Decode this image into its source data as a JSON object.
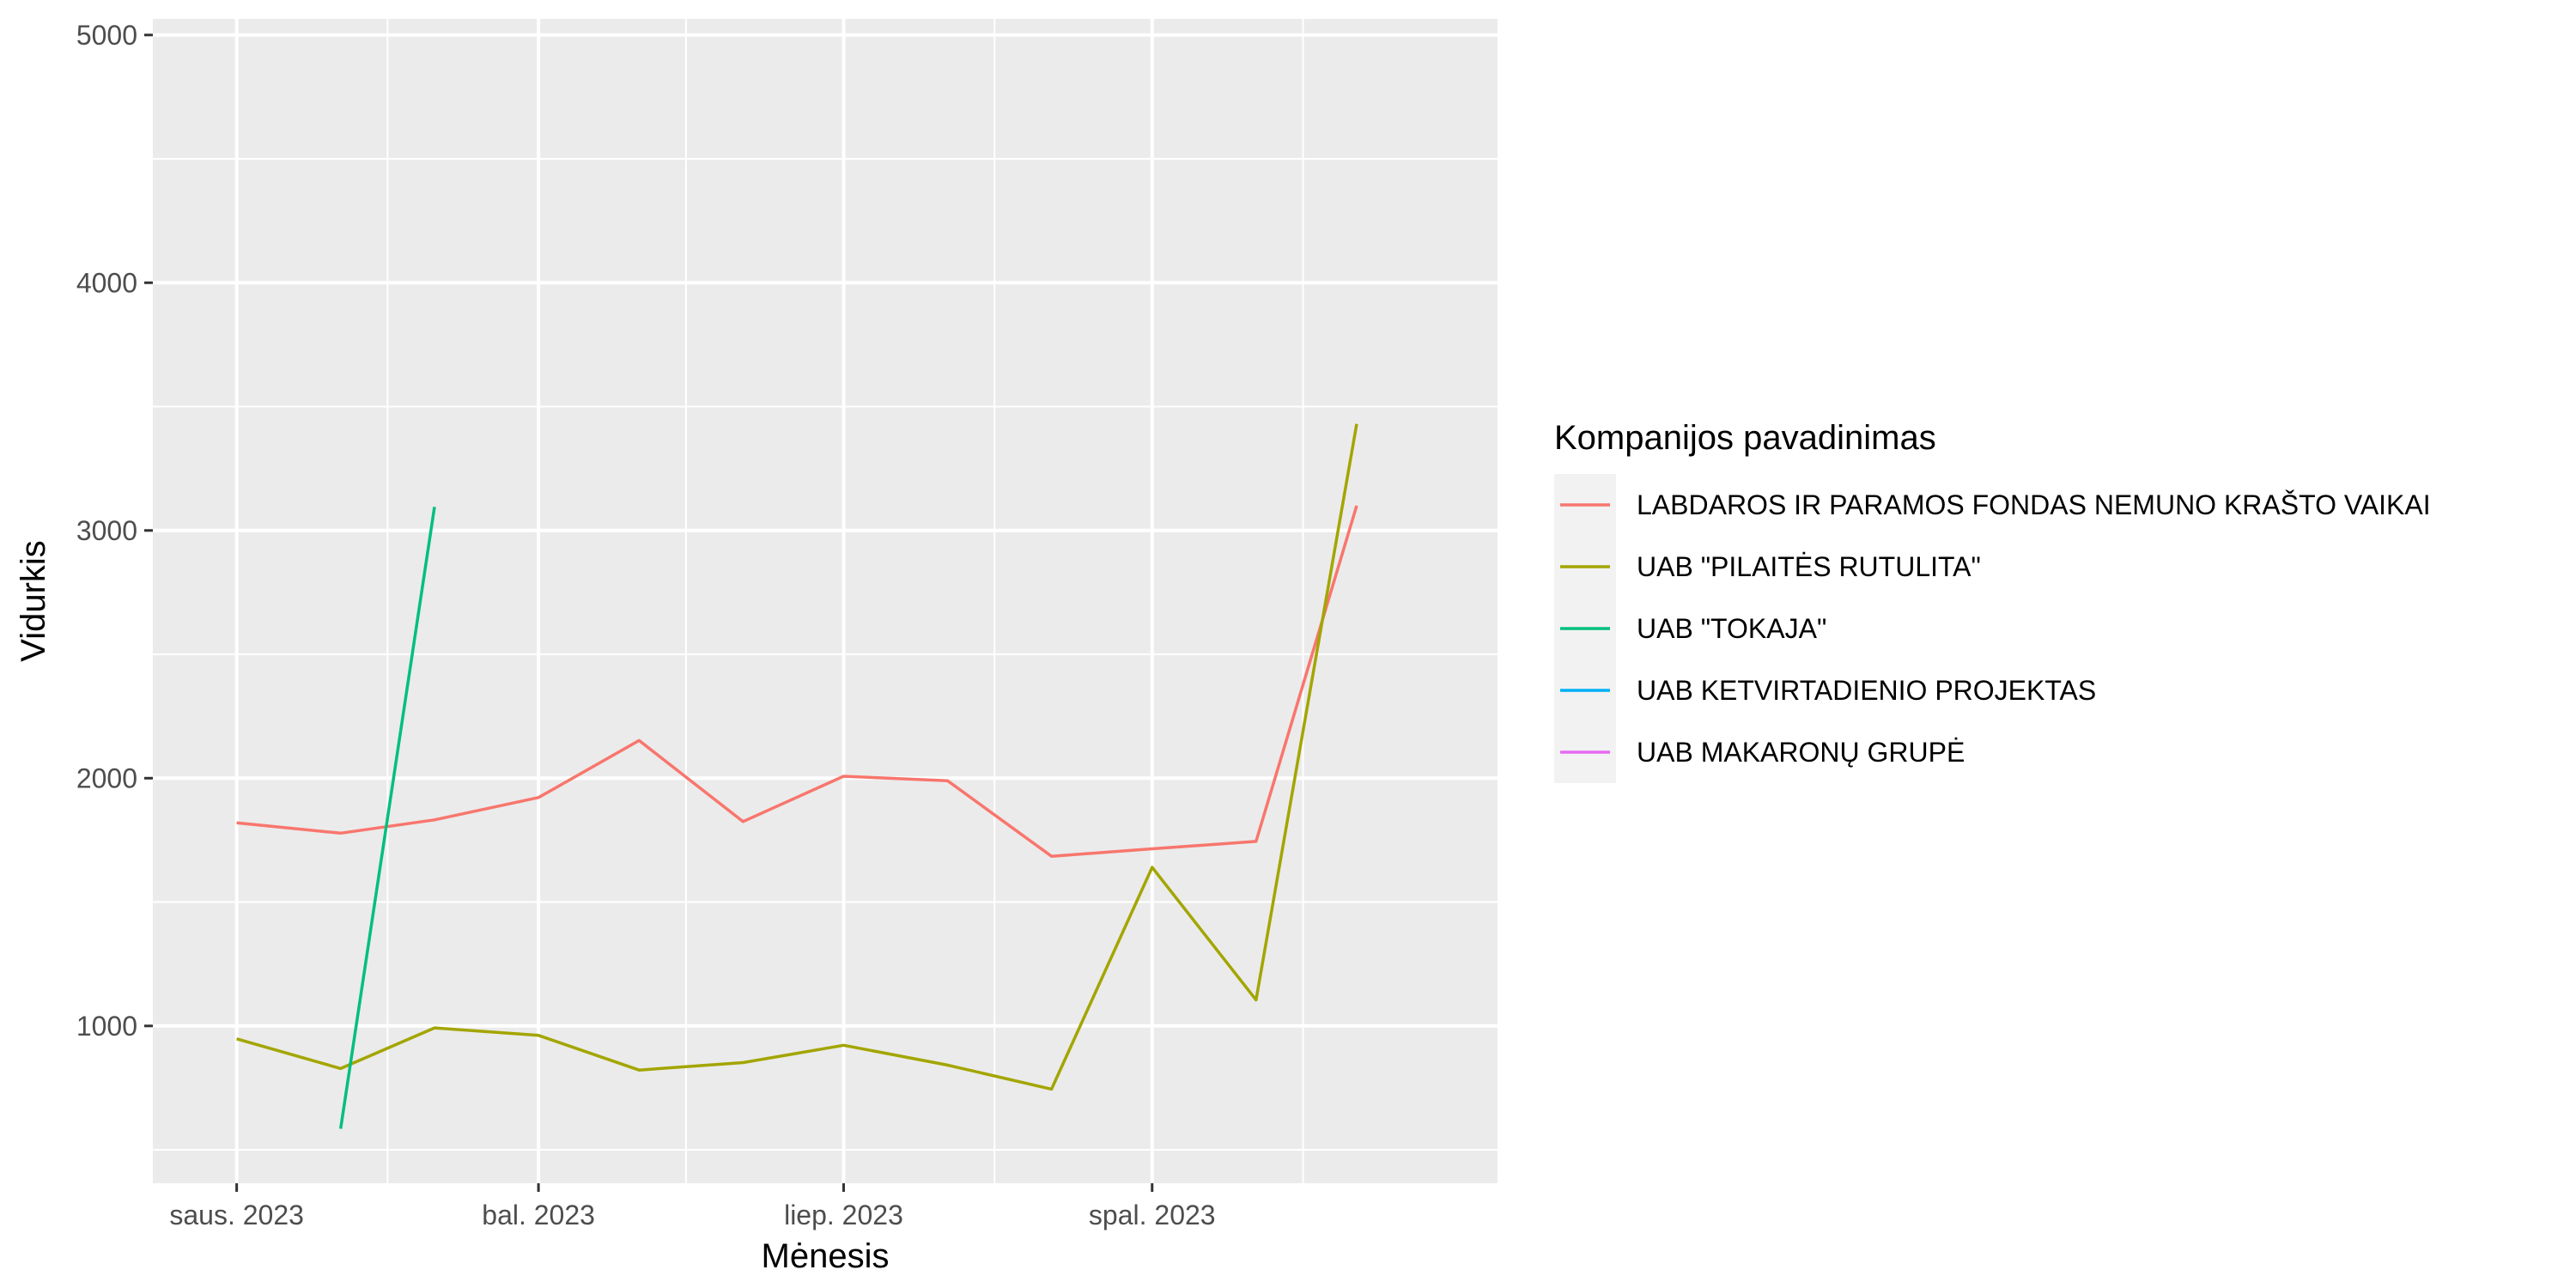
{
  "chart_data": {
    "type": "line",
    "xlabel": "Mėnesis",
    "ylabel": "Vidurkis",
    "x_ticks": [
      {
        "date": "2023-01-01",
        "label": "saus. 2023"
      },
      {
        "date": "2023-04-01",
        "label": "bal. 2023"
      },
      {
        "date": "2023-07-01",
        "label": "liep. 2023"
      },
      {
        "date": "2023-10-01",
        "label": "spal. 2023"
      }
    ],
    "x_minor_breaks": [
      "2023-02-15",
      "2023-05-15",
      "2023-08-15",
      "2023-11-15"
    ],
    "xlim": [
      "2022-12-07",
      "2024-01-12"
    ],
    "y_ticks": [
      1000,
      2000,
      3000,
      4000,
      5000
    ],
    "y_minor_breaks": [
      500,
      1500,
      2500,
      3500,
      4500
    ],
    "ylim": [
      365,
      5065
    ],
    "grid": true,
    "panel_background": "#ebebeb",
    "legend": {
      "title": "Kompanijos pavadinimas",
      "position": "right"
    },
    "series": [
      {
        "name": "LABDAROS IR PARAMOS FONDAS NEMUNO KRAŠTO VAIKAI",
        "color": "#f8766d",
        "points": [
          [
            "2023-01-01",
            1820
          ],
          [
            "2023-02-01",
            1778
          ],
          [
            "2023-03-01",
            1832
          ],
          [
            "2023-04-01",
            1922
          ],
          [
            "2023-05-01",
            2152
          ],
          [
            "2023-06-01",
            1825
          ],
          [
            "2023-07-01",
            2008
          ],
          [
            "2023-08-01",
            1990
          ],
          [
            "2023-09-01",
            1685
          ],
          [
            "2023-10-01",
            1715
          ],
          [
            "2023-11-01",
            1745
          ],
          [
            "2023-12-01",
            3100
          ]
        ]
      },
      {
        "name": "UAB \"PILAITĖS RUTULITA\"",
        "color": "#a3a500",
        "points": [
          [
            "2023-01-01",
            948
          ],
          [
            "2023-02-01",
            828
          ],
          [
            "2023-03-01",
            992
          ],
          [
            "2023-04-01",
            962
          ],
          [
            "2023-05-01",
            822
          ],
          [
            "2023-06-01",
            852
          ],
          [
            "2023-07-01",
            922
          ],
          [
            "2023-08-01",
            842
          ],
          [
            "2023-09-01",
            745
          ],
          [
            "2023-10-01",
            1640
          ],
          [
            "2023-11-01",
            1105
          ],
          [
            "2023-12-01",
            3430
          ]
        ]
      },
      {
        "name": "UAB \"TOKAJA\"",
        "color": "#00bf7d",
        "points": [
          [
            "2023-02-01",
            585
          ],
          [
            "2023-03-01",
            3095
          ]
        ]
      },
      {
        "name": "UAB KETVIRTADIENIO PROJEKTAS",
        "color": "#00b0f6",
        "points": []
      },
      {
        "name": "UAB MAKARONŲ GRUPĖ",
        "color": "#e76bf3",
        "points": []
      }
    ]
  }
}
